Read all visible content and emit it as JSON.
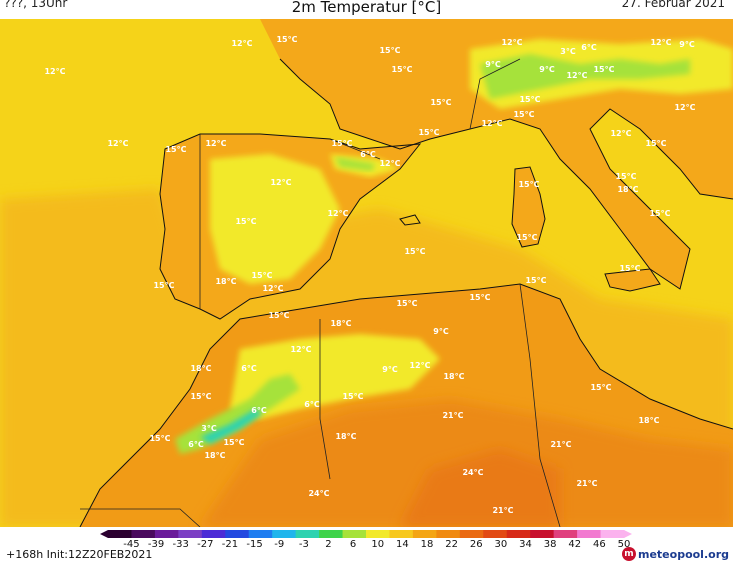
{
  "header": {
    "left_label": "???, 13Uhr",
    "title": "2m Temperatur [°C]",
    "date": "27. Februar 2021"
  },
  "footer": {
    "init_text": "+168h  Init:12Z20FEB2021",
    "logo_text": "meteopool.org",
    "scale_ticks": [
      "-45",
      "-39",
      "-33",
      "-27",
      "-21",
      "-15",
      "-9",
      "-3",
      "2",
      "6",
      "10",
      "14",
      "18",
      "22",
      "26",
      "30",
      "34",
      "38",
      "42",
      "46",
      "50"
    ],
    "scale_colors": [
      "#2b0030",
      "#4a0a5e",
      "#6a1b9a",
      "#7b3fc4",
      "#4c2bd6",
      "#2349e0",
      "#1f7df0",
      "#20b5ec",
      "#2dd2b0",
      "#3fd34a",
      "#a6e23a",
      "#f2e92a",
      "#f7c81e",
      "#f4a514",
      "#f08a10",
      "#ea6a12",
      "#e24a14",
      "#d72a18",
      "#c8102e",
      "#e0407e",
      "#f27ad0",
      "#fbb2ee"
    ]
  },
  "map": {
    "colors": {
      "sea_12": "#f5d319",
      "land_15": "#f4a81a",
      "land_18": "#f19b16",
      "warm_21": "#ec8a14",
      "hot_24": "#e97a12",
      "cool_10": "#f2e92a",
      "cold_6": "#a6e23a",
      "cold_3": "#2dd2b0",
      "coast": "#111111"
    },
    "labels": [
      {
        "text": "12°C"
      },
      {
        "text": "15°C"
      },
      {
        "text": "15°C"
      },
      {
        "text": "15°C"
      },
      {
        "text": "12°C"
      },
      {
        "text": "3°C"
      },
      {
        "text": "6°C"
      },
      {
        "text": "9°C"
      },
      {
        "text": "12°C"
      },
      {
        "text": "12°C"
      },
      {
        "text": "9°C"
      },
      {
        "text": "9°C"
      },
      {
        "text": "12°C"
      },
      {
        "text": "15°C"
      },
      {
        "text": "12°C"
      },
      {
        "text": "15°C"
      },
      {
        "text": "15°C"
      },
      {
        "text": "12°C"
      },
      {
        "text": "12°C"
      },
      {
        "text": "15°C"
      },
      {
        "text": "12°C"
      },
      {
        "text": "15°C"
      },
      {
        "text": "12°C"
      },
      {
        "text": "15°C"
      },
      {
        "text": "6°C"
      },
      {
        "text": "15°C"
      },
      {
        "text": "12°C"
      },
      {
        "text": "12°C"
      },
      {
        "text": "15°C"
      },
      {
        "text": "12°C"
      },
      {
        "text": "15°C"
      },
      {
        "text": "18°C"
      },
      {
        "text": "15°C"
      },
      {
        "text": "15°C"
      },
      {
        "text": "15°C"
      },
      {
        "text": "15°C"
      },
      {
        "text": "15°C"
      },
      {
        "text": "15°C"
      },
      {
        "text": "15°C"
      },
      {
        "text": "18°C"
      },
      {
        "text": "12°C"
      },
      {
        "text": "15°C"
      },
      {
        "text": "15°C"
      },
      {
        "text": "18°C"
      },
      {
        "text": "15°C"
      },
      {
        "text": "15°C"
      },
      {
        "text": "15°C"
      },
      {
        "text": "12°C"
      },
      {
        "text": "9°C"
      },
      {
        "text": "18°C"
      },
      {
        "text": "15°C"
      },
      {
        "text": "9°C"
      },
      {
        "text": "6°C"
      },
      {
        "text": "12°C"
      },
      {
        "text": "18°C"
      },
      {
        "text": "15°C"
      },
      {
        "text": "3°C"
      },
      {
        "text": "6°C"
      },
      {
        "text": "15°C"
      },
      {
        "text": "18°C"
      },
      {
        "text": "15°C"
      },
      {
        "text": "18°C"
      },
      {
        "text": "21°C"
      },
      {
        "text": "21°C"
      },
      {
        "text": "24°C"
      },
      {
        "text": "21°C"
      },
      {
        "text": "24°C"
      },
      {
        "text": "21°C"
      },
      {
        "text": "18°C"
      },
      {
        "text": "15°C"
      },
      {
        "text": "6°C"
      },
      {
        "text": "6°C"
      }
    ]
  }
}
